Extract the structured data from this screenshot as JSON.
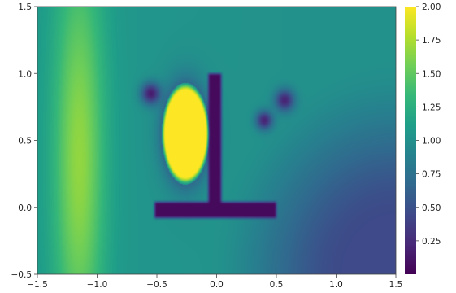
{
  "chart_data": {
    "type": "heatmap",
    "title": "",
    "xlabel": "",
    "ylabel": "",
    "xlim": [
      -1.5,
      1.5
    ],
    "ylim": [
      -0.5,
      1.5
    ],
    "x_ticks": [
      -1.5,
      -1.0,
      -0.5,
      0.0,
      0.5,
      1.0,
      1.5
    ],
    "x_tick_labels": [
      "−1.5",
      "−1.0",
      "−0.5",
      "0.0",
      "0.5",
      "1.0",
      "1.5"
    ],
    "y_ticks": [
      -0.5,
      0.0,
      0.5,
      1.0,
      1.5
    ],
    "y_tick_labels": [
      "−0.5",
      "0.0",
      "0.5",
      "1.0",
      "1.5"
    ],
    "colorbar": {
      "colormap": "viridis",
      "range": [
        0.0,
        2.0
      ],
      "ticks": [
        0.25,
        0.5,
        0.75,
        1.0,
        1.25,
        1.5,
        1.75,
        2.0
      ],
      "tick_labels": [
        "0.25",
        "0.50",
        "0.75",
        "1.00",
        "1.25",
        "1.50",
        "1.75",
        "2.00"
      ]
    },
    "colormap_stops": [
      "#440154",
      "#482878",
      "#3e4989",
      "#31688e",
      "#26828e",
      "#1f9e89",
      "#35b779",
      "#6ece58",
      "#b5de2b",
      "#fde725"
    ],
    "field": {
      "background_left": 1.05,
      "background_right": 1.0,
      "background_bottom_right": 0.45,
      "left_band": {
        "x_center": -1.15,
        "y_center": 0.35,
        "x_width": 0.22,
        "y_width": 1.4,
        "amplitude": 0.62
      },
      "hot_spot": {
        "x_center": -0.26,
        "y_center": 0.55,
        "x_radius": 0.2,
        "y_radius": 0.38,
        "value": 2.0
      },
      "shadow_regions": [
        {
          "x_from": -0.5,
          "x_to": 0.48,
          "y_from": -0.06,
          "y_to": 0.02,
          "value": 0.05
        },
        {
          "x_from": -0.05,
          "x_to": 0.02,
          "y_from": 0.0,
          "y_to": 0.98,
          "value": 0.05
        }
      ],
      "dark_lobes": [
        {
          "x": -0.55,
          "y": 0.85,
          "radius": 0.08,
          "value": 0.15
        },
        {
          "x": 0.4,
          "y": 0.65,
          "radius": 0.07,
          "value": 0.2
        },
        {
          "x": 0.57,
          "y": 0.8,
          "radius": 0.08,
          "value": 0.2
        }
      ]
    }
  }
}
